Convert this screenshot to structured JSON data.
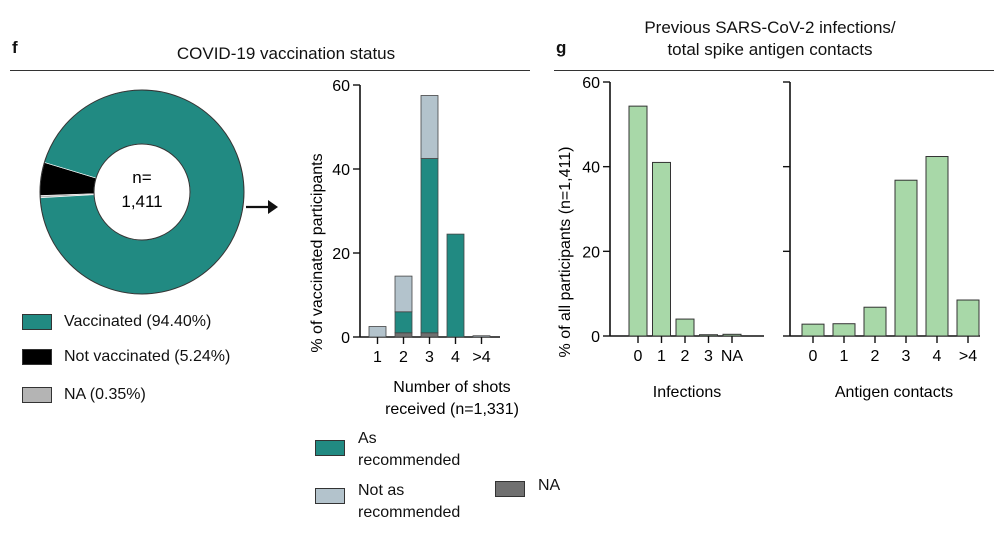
{
  "panel_f": {
    "letter": "f",
    "title": "COVID-19 vaccination status",
    "donut_center_line1": "n=",
    "donut_center_line2": "1,411",
    "arrow": "→"
  },
  "panel_g": {
    "letter": "g",
    "title_line1": "Previous SARS-CoV-2 infections/",
    "title_line2": "total spike antigen contacts"
  },
  "legend_donut": [
    {
      "label": "Vaccinated (94.40%)",
      "color": "#218a82"
    },
    {
      "label": "Not vaccinated (5.24%)",
      "color": "#000000"
    },
    {
      "label": "NA (0.35%)",
      "color": "#b4b4b4"
    }
  ],
  "legend_bars": [
    {
      "label_line1": "As",
      "label_line2": "recommended",
      "color": "#218a82"
    },
    {
      "label_line1": "Not as",
      "label_line2": "recommended",
      "color": "#b3c3cc"
    },
    {
      "label_line1": "NA",
      "label_line2": "",
      "color": "#707070"
    }
  ],
  "chart_data": [
    {
      "type": "pie",
      "title": "COVID-19 vaccination status",
      "categories": [
        "Vaccinated",
        "Not vaccinated",
        "NA"
      ],
      "values": [
        94.4,
        5.24,
        0.35
      ],
      "colors": [
        "#218a82",
        "#000000",
        "#b4b4b4"
      ],
      "center_label": "n= 1,411"
    },
    {
      "type": "bar",
      "stacked": true,
      "categories": [
        "1",
        "2",
        "3",
        "4",
        ">4"
      ],
      "series": [
        {
          "name": "NA",
          "values": [
            0,
            1,
            1,
            0,
            0
          ],
          "color": "#707070"
        },
        {
          "name": "As recommended",
          "values": [
            0,
            5,
            41.5,
            24.5,
            0
          ],
          "color": "#218a82"
        },
        {
          "name": "Not as recommended",
          "values": [
            2.5,
            8.5,
            15,
            0,
            0.3
          ],
          "color": "#b3c3cc"
        }
      ],
      "xlabel": "Number of shots received (n=1,331)",
      "ylabel": "% of vaccinated participants",
      "ylim": [
        0,
        60
      ],
      "yticks": [
        0,
        20,
        40,
        60
      ]
    },
    {
      "type": "bar",
      "categories": [
        "0",
        "1",
        "2",
        "3",
        "NA"
      ],
      "values": [
        54.3,
        41,
        4,
        0.3,
        0.4
      ],
      "color": "#a8d8a8",
      "xlabel": "Infections",
      "ylabel": "% of all participants (n=1,411)",
      "ylim": [
        0,
        60
      ],
      "yticks": [
        0,
        20,
        40,
        60
      ]
    },
    {
      "type": "bar",
      "categories": [
        "0",
        "1",
        "2",
        "3",
        "4",
        ">4"
      ],
      "values": [
        2.8,
        2.9,
        6.8,
        36.8,
        42.4,
        8.5
      ],
      "color": "#a8d8a8",
      "xlabel": "Antigen contacts",
      "ylim": [
        0,
        60
      ],
      "yticks": [
        0,
        20,
        40,
        60
      ]
    }
  ]
}
